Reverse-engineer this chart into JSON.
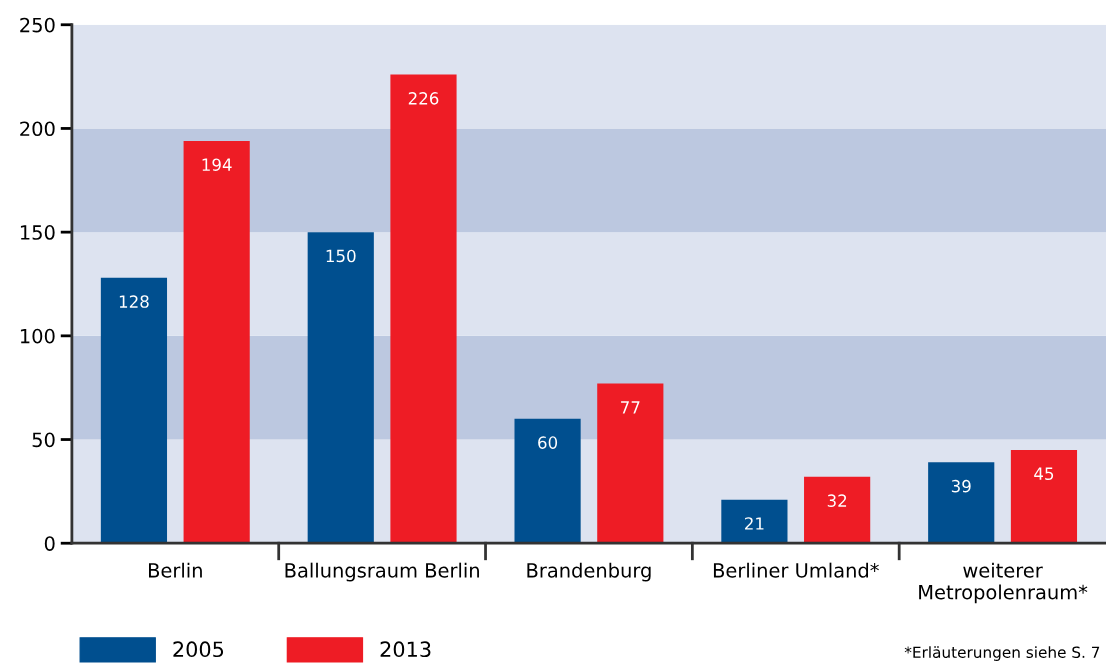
{
  "chart_data": {
    "type": "bar",
    "categories": [
      "Berlin",
      "Ballungsraum Berlin",
      "Brandenburg",
      "Berliner Umland*",
      "weiterer\nMetropolenraum*"
    ],
    "series": [
      {
        "name": "2005",
        "color": "#004f8f",
        "values": [
          128,
          150,
          60,
          21,
          39
        ]
      },
      {
        "name": "2013",
        "color": "#ee1c25",
        "values": [
          194,
          226,
          77,
          32,
          45
        ]
      }
    ],
    "ylim": [
      0,
      250
    ],
    "yticks": [
      0,
      50,
      100,
      150,
      200,
      250
    ],
    "bands": [
      {
        "axis": "y",
        "from": 0,
        "to": 50,
        "color": "#dde3f0"
      },
      {
        "axis": "y",
        "from": 50,
        "to": 100,
        "color": "#bcc8e0"
      },
      {
        "axis": "y",
        "from": 100,
        "to": 150,
        "color": "#dde3f0"
      },
      {
        "axis": "y",
        "from": 150,
        "to": 200,
        "color": "#bcc8e0"
      },
      {
        "axis": "y",
        "from": 200,
        "to": 250,
        "color": "#dde3f0"
      }
    ],
    "data_labels": true,
    "grid": false,
    "legend": "bottom left",
    "annotations": [
      "*Erläuterungen siehe S. 7"
    ]
  }
}
